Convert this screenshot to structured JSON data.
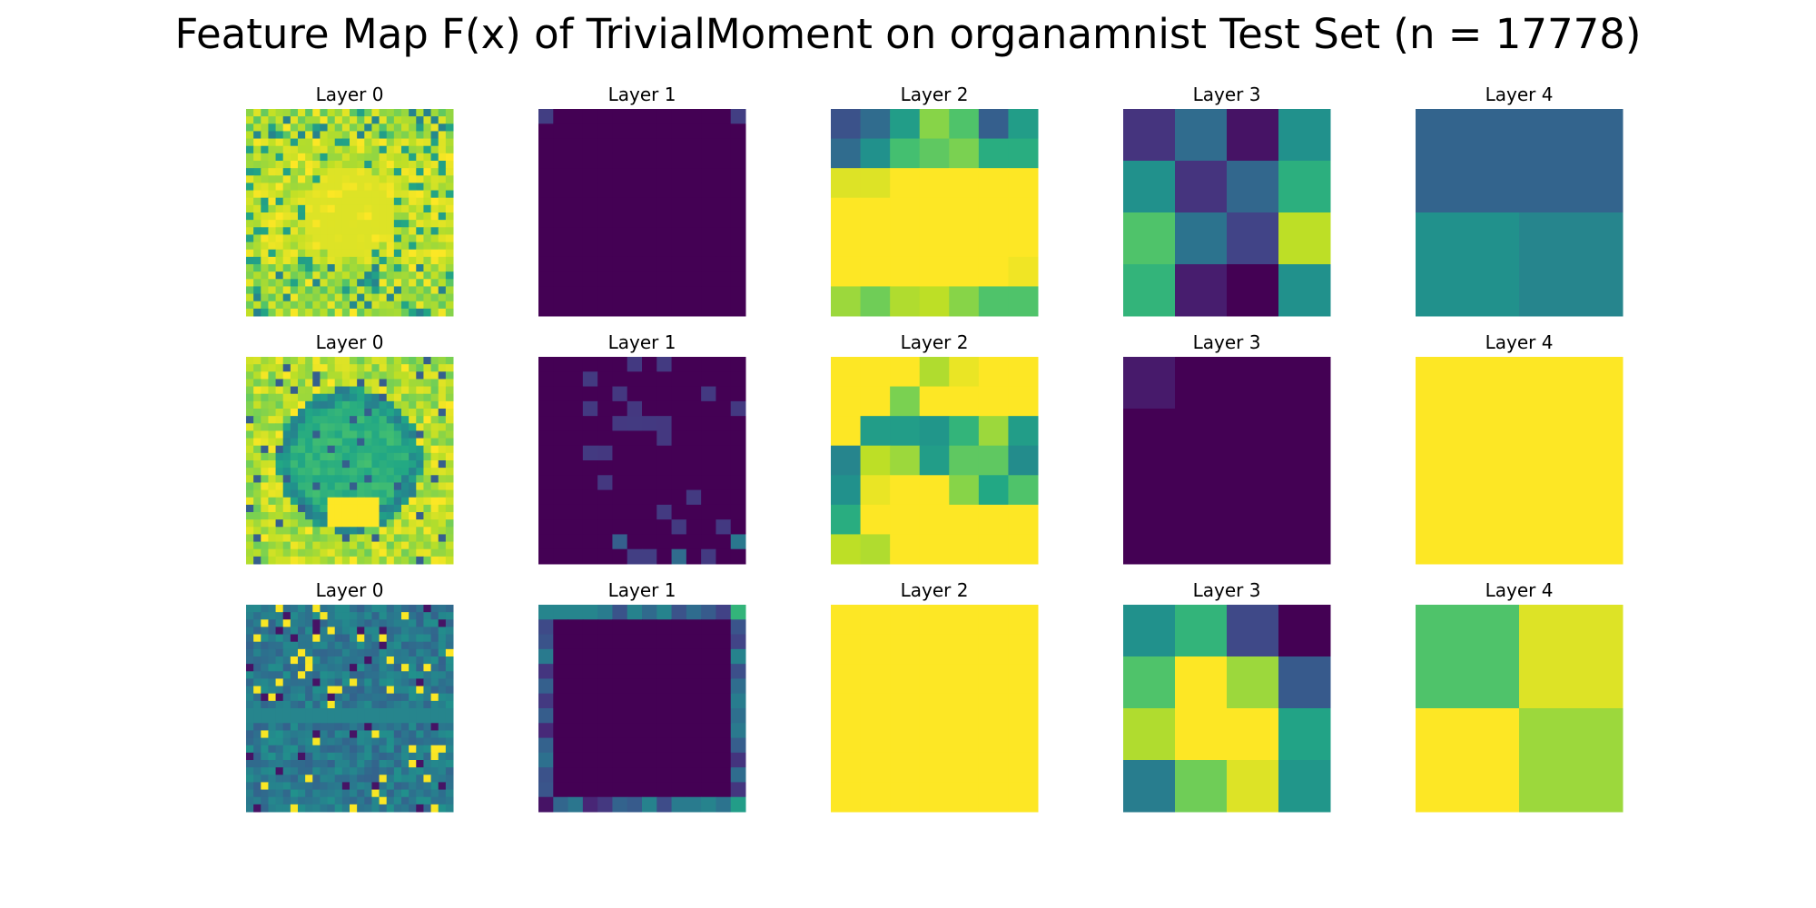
{
  "title": "Feature Map F(x) of TrivialMoment on organamnist Test Set (n = 17778)",
  "colormap": "viridis",
  "chart_data": {
    "type": "heatmap",
    "title": "Feature Map F(x) of TrivialMoment on organamnist Test Set (n = 17778)",
    "colormap": "viridis",
    "value_range": [
      0,
      1
    ],
    "note_values": "cell values are normalized colormap intensities (0 = dark purple, 1 = yellow)",
    "rows": [
      {
        "panels": [
          {
            "title": "Layer 0",
            "grid": 28,
            "pattern": "bright_textured",
            "cells": null
          },
          {
            "title": "Layer 1",
            "grid": 14,
            "pattern": "corners",
            "cells": null
          },
          {
            "title": "Layer 2",
            "grid": 7,
            "pattern": "explicit",
            "cells": [
              [
                0.25,
                0.35,
                0.55,
                0.82,
                0.72,
                0.3,
                0.55
              ],
              [
                0.35,
                0.5,
                0.7,
                0.75,
                0.8,
                0.62,
                0.62
              ],
              [
                0.95,
                0.95,
                1.0,
                1.0,
                1.0,
                1.0,
                1.0
              ],
              [
                1.0,
                1.0,
                1.0,
                1.0,
                1.0,
                1.0,
                1.0
              ],
              [
                1.0,
                1.0,
                1.0,
                1.0,
                1.0,
                1.0,
                1.0
              ],
              [
                1.0,
                1.0,
                1.0,
                1.0,
                1.0,
                1.0,
                0.98
              ],
              [
                0.85,
                0.78,
                0.88,
                0.9,
                0.82,
                0.72,
                0.72
              ]
            ]
          },
          {
            "title": "Layer 3",
            "grid": 4,
            "pattern": "explicit",
            "cells": [
              [
                0.15,
                0.35,
                0.05,
                0.5
              ],
              [
                0.5,
                0.15,
                0.33,
                0.63
              ],
              [
                0.72,
                0.38,
                0.2,
                0.9
              ],
              [
                0.65,
                0.08,
                0.0,
                0.5
              ]
            ]
          },
          {
            "title": "Layer 4",
            "grid": 2,
            "pattern": "explicit",
            "cells": [
              [
                0.32,
                0.32
              ],
              [
                0.5,
                0.45
              ]
            ]
          }
        ]
      },
      {
        "panels": [
          {
            "title": "Layer 0",
            "grid": 28,
            "pattern": "ring_textured",
            "cells": null
          },
          {
            "title": "Layer 1",
            "grid": 14,
            "pattern": "sparse_dark",
            "cells": null
          },
          {
            "title": "Layer 2",
            "grid": 7,
            "pattern": "explicit",
            "cells": [
              [
                1.0,
                1.0,
                1.0,
                0.88,
                0.97,
                1.0,
                1.0
              ],
              [
                1.0,
                1.0,
                0.8,
                1.0,
                1.0,
                1.0,
                1.0
              ],
              [
                1.0,
                0.55,
                0.55,
                0.52,
                0.65,
                0.85,
                0.55
              ],
              [
                0.45,
                0.9,
                0.85,
                0.55,
                0.75,
                0.75,
                0.48
              ],
              [
                0.5,
                0.97,
                1.0,
                1.0,
                0.82,
                0.6,
                0.72
              ],
              [
                0.62,
                1.0,
                1.0,
                1.0,
                1.0,
                1.0,
                1.0
              ],
              [
                0.9,
                0.88,
                1.0,
                1.0,
                1.0,
                1.0,
                1.0
              ]
            ]
          },
          {
            "title": "Layer 3",
            "grid": 4,
            "pattern": "explicit",
            "cells": [
              [
                0.07,
                0.0,
                0.0,
                0.0
              ],
              [
                0.0,
                0.0,
                0.0,
                0.0
              ],
              [
                0.0,
                0.0,
                0.0,
                0.0
              ],
              [
                0.0,
                0.0,
                0.0,
                0.0
              ]
            ]
          },
          {
            "title": "Layer 4",
            "grid": 2,
            "pattern": "explicit",
            "cells": [
              [
                1.0,
                1.0
              ],
              [
                1.0,
                1.0
              ]
            ]
          }
        ]
      },
      {
        "panels": [
          {
            "title": "Layer 0",
            "grid": 28,
            "pattern": "teal_noisy",
            "cells": null
          },
          {
            "title": "Layer 1",
            "grid": 14,
            "pattern": "border",
            "cells": null
          },
          {
            "title": "Layer 2",
            "grid": 7,
            "pattern": "explicit",
            "cells": [
              [
                1.0,
                1.0,
                1.0,
                1.0,
                1.0,
                1.0,
                1.0
              ],
              [
                1.0,
                1.0,
                1.0,
                1.0,
                1.0,
                1.0,
                1.0
              ],
              [
                1.0,
                1.0,
                1.0,
                1.0,
                1.0,
                1.0,
                1.0
              ],
              [
                1.0,
                1.0,
                1.0,
                1.0,
                1.0,
                1.0,
                1.0
              ],
              [
                1.0,
                1.0,
                1.0,
                1.0,
                1.0,
                1.0,
                1.0
              ],
              [
                1.0,
                1.0,
                1.0,
                1.0,
                1.0,
                1.0,
                1.0
              ],
              [
                1.0,
                1.0,
                1.0,
                1.0,
                1.0,
                1.0,
                1.0
              ]
            ]
          },
          {
            "title": "Layer 3",
            "grid": 4,
            "pattern": "explicit",
            "cells": [
              [
                0.5,
                0.65,
                0.22,
                0.0
              ],
              [
                0.72,
                1.0,
                0.85,
                0.28
              ],
              [
                0.88,
                1.0,
                1.0,
                0.58
              ],
              [
                0.42,
                0.78,
                0.95,
                0.52
              ]
            ]
          },
          {
            "title": "Layer 4",
            "grid": 2,
            "pattern": "explicit",
            "cells": [
              [
                0.72,
                0.95
              ],
              [
                1.0,
                0.85
              ]
            ]
          }
        ]
      }
    ]
  }
}
